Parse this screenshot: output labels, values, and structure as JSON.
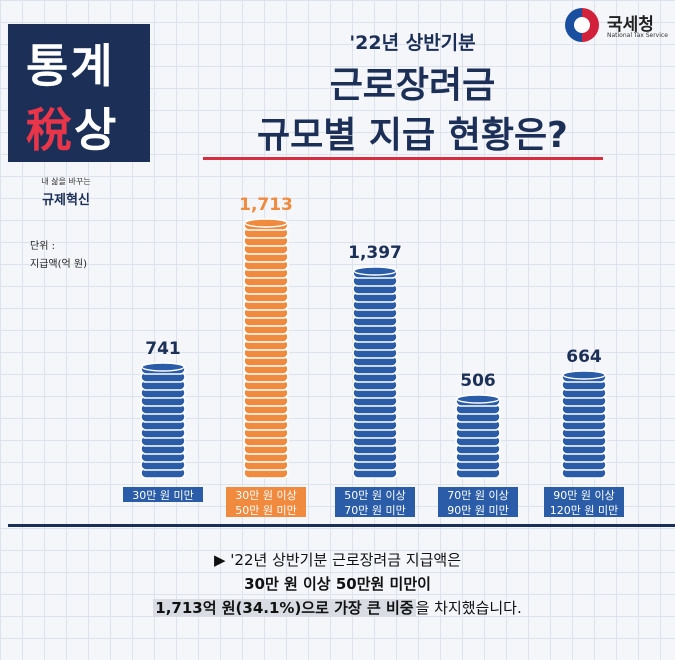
{
  "header": {
    "badge_line1": "통계",
    "badge_line2_red": "稅",
    "badge_line2_rest": "상",
    "logo_ko": "국세청",
    "logo_en": "National Tax Service",
    "reform_small": "내 삶을 바꾸는",
    "reform_main": "규제혁신",
    "subtitle": "'22년 상반기분",
    "title_line1": "근로장려금",
    "title_line2": "규모별 지급 현황은?"
  },
  "unit": {
    "line1": "단위 :",
    "line2": "지급액(억 원)"
  },
  "colors": {
    "navy": "#1c2f57",
    "blue_coin": "#2a5ca8",
    "orange_coin": "#ef8a3e",
    "accent_red": "#d62e3e"
  },
  "chart_data": {
    "type": "bar",
    "categories": [
      "30만 원 미만",
      "30만 원 이상\n50만 원 미만",
      "50만 원 이상\n70만 원 미만",
      "70만 원 이상\n90만 원 미만",
      "90만 원 이상\n120만 원 미만"
    ],
    "values": [
      741,
      1713,
      1397,
      506,
      664
    ],
    "value_labels": [
      "741",
      "1,713",
      "1,397",
      "506",
      "664"
    ],
    "highlight_index": 1,
    "ylabel": "지급액(억 원)",
    "ylim": [
      0,
      1800
    ],
    "grid": false
  },
  "summary": {
    "line1": "▶ '22년 상반기분 근로장려금 지급액은",
    "line2": "30만 원 이상 50만원 미만이",
    "line3_highlight": "1,713억 원(34.1%)으로 가장 큰 비중",
    "line3_rest": "을 차지했습니다."
  }
}
